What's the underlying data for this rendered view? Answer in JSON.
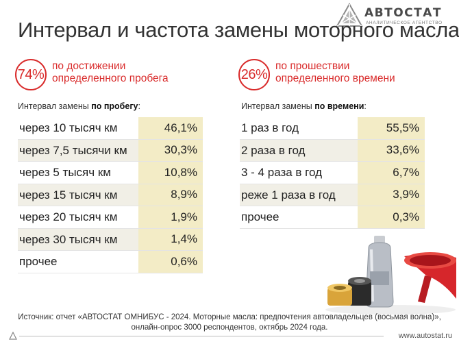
{
  "brand": {
    "name": "АВТОСТАТ",
    "tagline": "Аналитическое агентство"
  },
  "title": "Интервал и частота замены моторного масла",
  "kpis": [
    {
      "value": "74%",
      "line1": "по достижении",
      "line2": "определенного пробега"
    },
    {
      "value": "26%",
      "line1": "по прошествии",
      "line2": "определенного времени"
    }
  ],
  "mileage": {
    "heading_prefix": "Интервал замены",
    "heading_bold": "по пробегу",
    "heading_suffix": ":",
    "rows": [
      {
        "label": "через 10 тысяч км",
        "value": "46,1%"
      },
      {
        "label": "через 7,5 тысячи км",
        "value": "30,3%"
      },
      {
        "label": "через 5 тысяч км",
        "value": "10,8%"
      },
      {
        "label": "через 15 тысяч км",
        "value": "8,9%"
      },
      {
        "label": "через 20 тысяч км",
        "value": "1,9%"
      },
      {
        "label": "через 30 тысяч км",
        "value": "1,4%"
      },
      {
        "label": "прочее",
        "value": "0,6%"
      }
    ]
  },
  "time": {
    "heading_prefix": "Интервал замены",
    "heading_bold": "по времени",
    "heading_suffix": ":",
    "rows": [
      {
        "label": "1 раз в год",
        "value": "55,5%"
      },
      {
        "label": "2 раза в год",
        "value": "33,6%"
      },
      {
        "label": "3 - 4 раза в год",
        "value": "6,7%"
      },
      {
        "label": "реже 1 раза в год",
        "value": "3,9%"
      },
      {
        "label": "прочее",
        "value": "0,3%"
      }
    ]
  },
  "source": {
    "line1": "Источник: отчет «АВТОСТАТ ОМНИБУС - 2024. Моторные масла: предпочтения автовладельцев (восьмая волна)»,",
    "line2": "онлайн-опрос 3000 респондентов, октябрь 2024 года."
  },
  "footer_url": "www.autostat.ru",
  "colors": {
    "accent": "#d92b2b",
    "value_bg": "#f3ecc6",
    "row_alt_bg": "#f1efe6"
  },
  "icons": [
    "autostat-logo-icon",
    "oil-products-illustration",
    "footer-mark-icon"
  ]
}
